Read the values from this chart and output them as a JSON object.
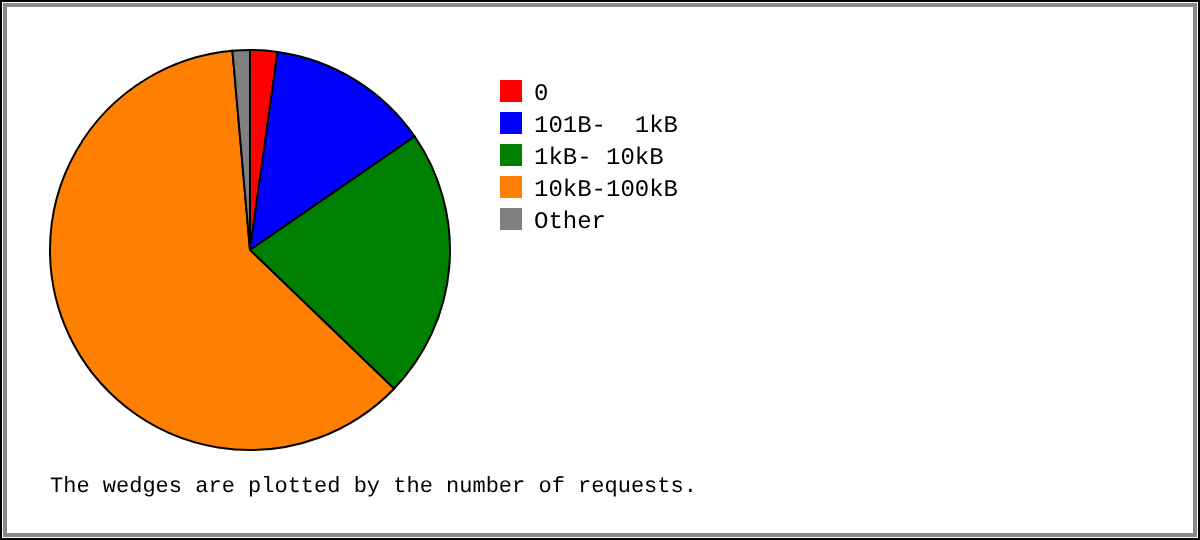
{
  "chart_data": {
    "type": "pie",
    "categories": [
      "0",
      "101B-  1kB",
      "1kB- 10kB",
      "10kB-100kB",
      "Other"
    ],
    "values": [
      2.2,
      13.2,
      21.8,
      61.4,
      1.4
    ],
    "colors": [
      "#ff0000",
      "#0000ff",
      "#008000",
      "#ff8000",
      "#808080"
    ],
    "legend": "right",
    "annotations": [
      "The wedges are plotted by the number of requests."
    ]
  }
}
